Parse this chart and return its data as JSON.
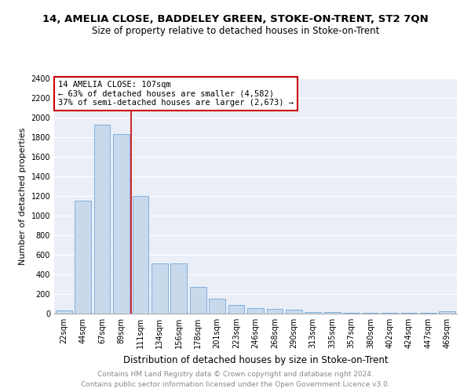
{
  "title": "14, AMELIA CLOSE, BADDELEY GREEN, STOKE-ON-TRENT, ST2 7QN",
  "subtitle": "Size of property relative to detached houses in Stoke-on-Trent",
  "xlabel": "Distribution of detached houses by size in Stoke-on-Trent",
  "ylabel": "Number of detached properties",
  "categories": [
    "22sqm",
    "44sqm",
    "67sqm",
    "89sqm",
    "111sqm",
    "134sqm",
    "156sqm",
    "178sqm",
    "201sqm",
    "223sqm",
    "246sqm",
    "268sqm",
    "290sqm",
    "313sqm",
    "335sqm",
    "357sqm",
    "380sqm",
    "402sqm",
    "424sqm",
    "447sqm",
    "469sqm"
  ],
  "values": [
    30,
    1150,
    1930,
    1830,
    1200,
    510,
    510,
    270,
    150,
    90,
    55,
    45,
    40,
    20,
    15,
    10,
    8,
    8,
    5,
    5,
    25
  ],
  "bar_color": "#c9d9ec",
  "bar_edge_color": "#5b9bd5",
  "vline_color": "#cc0000",
  "annotation_box_text": "14 AMELIA CLOSE: 107sqm\n← 63% of detached houses are smaller (4,582)\n37% of semi-detached houses are larger (2,673) →",
  "annotation_box_color": "#cc0000",
  "ylim": [
    0,
    2400
  ],
  "yticks": [
    0,
    200,
    400,
    600,
    800,
    1000,
    1200,
    1400,
    1600,
    1800,
    2000,
    2200,
    2400
  ],
  "background_color": "#eaeff7",
  "footer_line1": "Contains HM Land Registry data © Crown copyright and database right 2024.",
  "footer_line2": "Contains public sector information licensed under the Open Government Licence v3.0.",
  "title_fontsize": 9.5,
  "subtitle_fontsize": 8.5,
  "xlabel_fontsize": 8.5,
  "ylabel_fontsize": 8,
  "tick_fontsize": 7,
  "footer_fontsize": 6.5,
  "annotation_fontsize": 7.5
}
